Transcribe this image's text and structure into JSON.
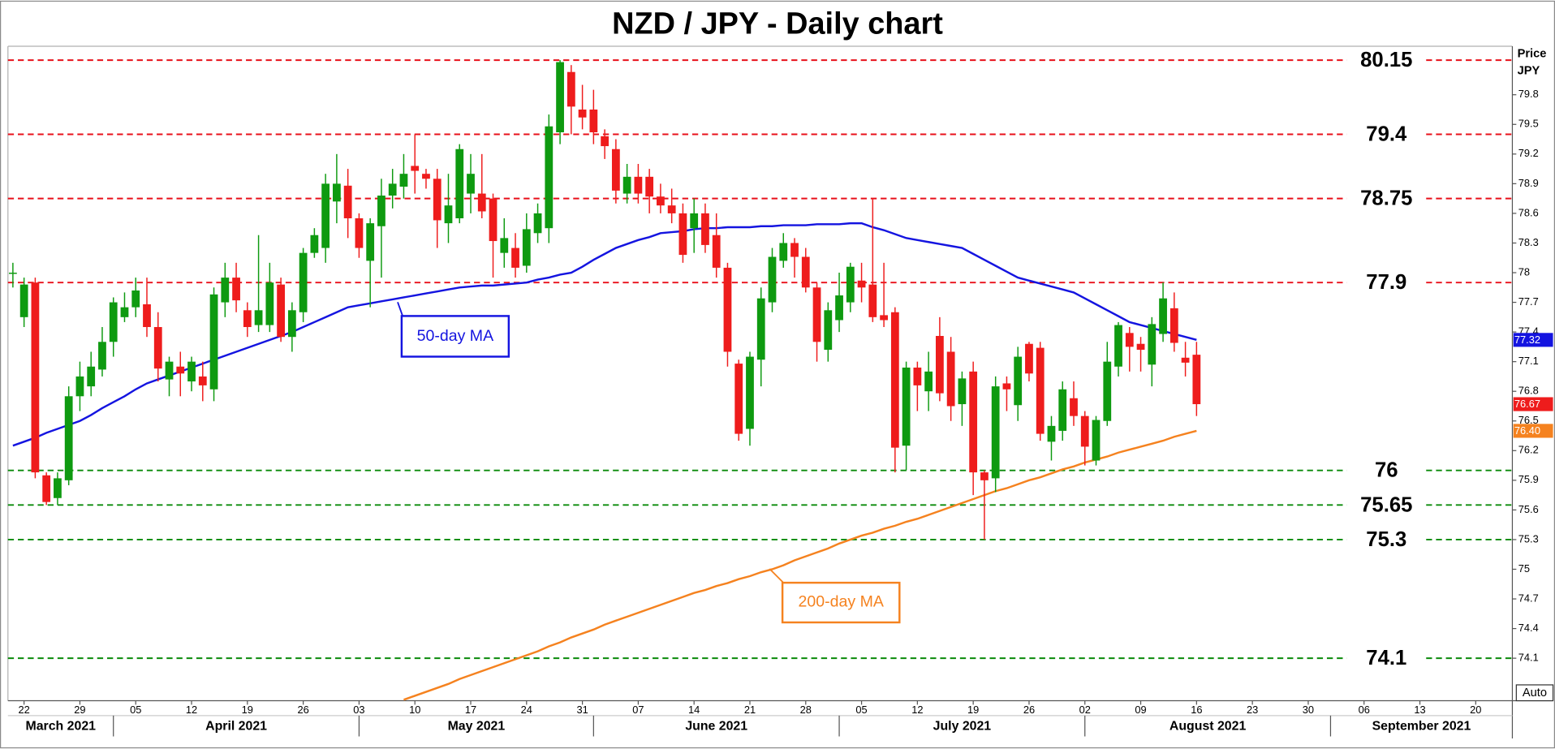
{
  "chart_data": {
    "type": "candlestick",
    "title": "NZD / JPY - Daily chart",
    "ylabel_lines": [
      "Price",
      "JPY"
    ],
    "controls": [
      "Auto"
    ],
    "ylim": [
      73.67,
      80.29
    ],
    "yticks": [
      74.1,
      74.4,
      74.7,
      75,
      75.3,
      75.6,
      75.9,
      76.2,
      76.5,
      76.8,
      77.1,
      77.4,
      77.7,
      78,
      78.3,
      78.6,
      78.9,
      79.2,
      79.5,
      79.8
    ],
    "categories": [
      "2021-03-19",
      "2021-03-22",
      "2021-03-23",
      "2021-03-24",
      "2021-03-25",
      "2021-03-26",
      "2021-03-29",
      "2021-03-30",
      "2021-03-31",
      "2021-04-01",
      "2021-04-02",
      "2021-04-05",
      "2021-04-06",
      "2021-04-07",
      "2021-04-08",
      "2021-04-09",
      "2021-04-12",
      "2021-04-13",
      "2021-04-14",
      "2021-04-15",
      "2021-04-16",
      "2021-04-19",
      "2021-04-20",
      "2021-04-21",
      "2021-04-22",
      "2021-04-23",
      "2021-04-26",
      "2021-04-27",
      "2021-04-28",
      "2021-04-29",
      "2021-04-30",
      "2021-05-03",
      "2021-05-04",
      "2021-05-05",
      "2021-05-06",
      "2021-05-07",
      "2021-05-10",
      "2021-05-11",
      "2021-05-12",
      "2021-05-13",
      "2021-05-14",
      "2021-05-17",
      "2021-05-18",
      "2021-05-19",
      "2021-05-20",
      "2021-05-21",
      "2021-05-24",
      "2021-05-25",
      "2021-05-26",
      "2021-05-27",
      "2021-05-28",
      "2021-05-31",
      "2021-06-01",
      "2021-06-02",
      "2021-06-03",
      "2021-06-04",
      "2021-06-07",
      "2021-06-08",
      "2021-06-09",
      "2021-06-10",
      "2021-06-11",
      "2021-06-14",
      "2021-06-15",
      "2021-06-16",
      "2021-06-17",
      "2021-06-18",
      "2021-06-21",
      "2021-06-22",
      "2021-06-23",
      "2021-06-24",
      "2021-06-25",
      "2021-06-28",
      "2021-06-29",
      "2021-06-30",
      "2021-07-01",
      "2021-07-02",
      "2021-07-05",
      "2021-07-06",
      "2021-07-07",
      "2021-07-08",
      "2021-07-09",
      "2021-07-12",
      "2021-07-13",
      "2021-07-14",
      "2021-07-15",
      "2021-07-16",
      "2021-07-19",
      "2021-07-20",
      "2021-07-21",
      "2021-07-22",
      "2021-07-23",
      "2021-07-26",
      "2021-07-27",
      "2021-07-28",
      "2021-07-29",
      "2021-07-30",
      "2021-08-02",
      "2021-08-03",
      "2021-08-04",
      "2021-08-05",
      "2021-08-06",
      "2021-08-09",
      "2021-08-10",
      "2021-08-11",
      "2021-08-12",
      "2021-08-13",
      "2021-08-16"
    ],
    "ohlc": {
      "up_color": "#0e9a10",
      "down_color": "#ee1c1c",
      "open": [
        78.0,
        77.55,
        77.9,
        75.95,
        75.72,
        75.9,
        76.75,
        76.85,
        77.02,
        77.3,
        77.55,
        77.65,
        77.68,
        77.45,
        76.92,
        77.05,
        76.9,
        76.95,
        76.82,
        77.7,
        77.95,
        77.62,
        77.47,
        77.47,
        77.88,
        77.35,
        77.6,
        78.2,
        78.25,
        78.72,
        78.88,
        78.55,
        78.12,
        78.47,
        78.78,
        78.87,
        79.08,
        79.0,
        78.95,
        78.5,
        78.55,
        78.8,
        78.8,
        78.75,
        78.2,
        78.25,
        78.07,
        78.4,
        78.45,
        79.42,
        80.03,
        79.65,
        79.65,
        79.38,
        79.25,
        78.8,
        78.97,
        78.97,
        78.77,
        78.68,
        78.6,
        78.45,
        78.6,
        78.38,
        78.05,
        77.08,
        76.42,
        77.12,
        77.7,
        78.12,
        78.3,
        78.16,
        77.85,
        77.22,
        77.52,
        77.7,
        77.92,
        77.88,
        77.57,
        77.6,
        76.25,
        77.04,
        76.8,
        77.36,
        77.2,
        76.67,
        77.0,
        75.98,
        75.92,
        76.88,
        76.66,
        77.28,
        77.24,
        76.29,
        76.4,
        76.73,
        76.55,
        76.1,
        76.5,
        77.05,
        77.39,
        77.28,
        77.07,
        77.38,
        77.64,
        77.14,
        77.17
      ],
      "high": [
        78.1,
        77.95,
        77.95,
        75.98,
        75.98,
        76.85,
        77.1,
        77.2,
        77.45,
        77.75,
        77.8,
        77.95,
        77.95,
        77.6,
        77.15,
        77.2,
        77.15,
        77.1,
        77.85,
        78.1,
        78.1,
        77.7,
        78.38,
        78.1,
        77.95,
        77.7,
        78.25,
        78.45,
        79.0,
        79.2,
        79.05,
        78.6,
        78.55,
        78.95,
        79.05,
        79.2,
        79.4,
        79.05,
        79.05,
        79.0,
        79.3,
        79.2,
        79.2,
        78.8,
        78.55,
        78.4,
        78.6,
        78.7,
        79.6,
        80.15,
        80.1,
        79.9,
        79.85,
        79.45,
        79.35,
        79.1,
        79.1,
        79.05,
        78.9,
        78.85,
        78.7,
        78.75,
        78.7,
        78.6,
        78.1,
        77.12,
        77.2,
        77.85,
        78.25,
        78.4,
        78.35,
        78.25,
        77.9,
        77.7,
        78.0,
        78.1,
        78.1,
        78.75,
        78.1,
        77.65,
        77.1,
        77.1,
        77.2,
        77.55,
        77.35,
        77.0,
        77.1,
        76.0,
        76.95,
        76.95,
        77.25,
        77.3,
        77.3,
        76.55,
        76.9,
        76.9,
        76.6,
        76.55,
        77.3,
        77.5,
        77.45,
        77.35,
        77.55,
        77.9,
        77.8,
        77.3,
        77.3
      ],
      "low": [
        77.85,
        77.45,
        75.92,
        75.65,
        75.65,
        75.85,
        76.6,
        76.75,
        76.95,
        77.15,
        77.5,
        77.55,
        77.35,
        76.9,
        76.75,
        76.75,
        76.8,
        76.7,
        76.7,
        77.55,
        77.6,
        77.35,
        77.4,
        77.4,
        77.3,
        77.2,
        77.5,
        78.15,
        78.1,
        78.5,
        78.35,
        78.15,
        77.65,
        77.95,
        78.65,
        78.75,
        78.8,
        78.85,
        78.25,
        78.3,
        78.5,
        78.6,
        78.55,
        77.95,
        78.05,
        77.95,
        78.0,
        78.3,
        78.3,
        79.3,
        79.4,
        79.45,
        79.3,
        79.15,
        78.7,
        78.7,
        78.7,
        78.6,
        78.6,
        78.5,
        78.1,
        78.2,
        78.2,
        77.95,
        77.05,
        76.3,
        76.25,
        76.85,
        77.6,
        78.05,
        77.95,
        77.8,
        77.1,
        77.1,
        77.4,
        77.6,
        77.7,
        77.5,
        77.45,
        75.98,
        76.0,
        76.6,
        76.6,
        76.7,
        76.5,
        76.45,
        75.75,
        75.3,
        75.78,
        76.6,
        76.5,
        76.9,
        76.3,
        76.1,
        76.3,
        76.45,
        76.05,
        76.05,
        76.45,
        76.95,
        77.0,
        77.0,
        76.85,
        77.3,
        77.2,
        76.95,
        76.55
      ],
      "close": [
        78.0,
        77.88,
        75.98,
        75.68,
        75.92,
        76.75,
        76.95,
        77.05,
        77.3,
        77.7,
        77.65,
        77.82,
        77.45,
        77.03,
        77.1,
        76.98,
        77.1,
        76.86,
        77.78,
        77.95,
        77.72,
        77.45,
        77.62,
        77.9,
        77.35,
        77.62,
        78.2,
        78.38,
        78.9,
        78.9,
        78.55,
        78.25,
        78.5,
        78.78,
        78.9,
        79.0,
        79.03,
        78.95,
        78.53,
        78.68,
        79.25,
        79.0,
        78.62,
        78.32,
        78.35,
        78.05,
        78.44,
        78.6,
        79.48,
        80.13,
        79.68,
        79.57,
        79.42,
        79.28,
        78.83,
        78.97,
        78.8,
        78.77,
        78.68,
        78.6,
        78.18,
        78.6,
        78.28,
        78.05,
        77.2,
        76.37,
        77.15,
        77.74,
        78.16,
        78.3,
        78.16,
        77.85,
        77.3,
        77.62,
        77.77,
        78.06,
        77.85,
        77.55,
        77.52,
        76.23,
        77.04,
        76.86,
        77.0,
        76.78,
        76.65,
        76.93,
        75.98,
        75.9,
        76.85,
        76.82,
        77.15,
        76.98,
        76.37,
        76.45,
        76.82,
        76.55,
        76.24,
        76.51,
        77.1,
        77.47,
        77.25,
        77.22,
        77.48,
        77.74,
        77.29,
        77.09,
        76.67
      ],
      "last_tag": {
        "value": 76.67,
        "label": "76.67"
      }
    },
    "overlays": [
      {
        "name": "50-day MA",
        "color": "#1414e0",
        "tag": {
          "value": 77.32,
          "label": "77.32"
        },
        "values": [
          76.25,
          76.29,
          76.33,
          76.38,
          76.42,
          76.46,
          76.5,
          76.56,
          76.63,
          76.69,
          76.75,
          76.82,
          76.88,
          76.92,
          76.96,
          77.0,
          77.04,
          77.08,
          77.12,
          77.16,
          77.2,
          77.24,
          77.28,
          77.32,
          77.36,
          77.4,
          77.45,
          77.5,
          77.55,
          77.6,
          77.65,
          77.67,
          77.69,
          77.71,
          77.73,
          77.75,
          77.77,
          77.79,
          77.81,
          77.83,
          77.85,
          77.86,
          77.87,
          77.87,
          77.88,
          77.89,
          77.9,
          77.93,
          77.95,
          77.98,
          78.0,
          78.06,
          78.13,
          78.19,
          78.25,
          78.29,
          78.33,
          78.36,
          78.4,
          78.41,
          78.42,
          78.44,
          78.45,
          78.45,
          78.46,
          78.46,
          78.46,
          78.47,
          78.47,
          78.48,
          78.48,
          78.48,
          78.49,
          78.49,
          78.49,
          78.5,
          78.5,
          78.46,
          78.43,
          78.39,
          78.35,
          78.33,
          78.31,
          78.29,
          78.27,
          78.25,
          78.19,
          78.13,
          78.07,
          78.01,
          77.95,
          77.92,
          77.89,
          77.86,
          77.83,
          77.8,
          77.74,
          77.68,
          77.62,
          77.56,
          77.5,
          77.47,
          77.44,
          77.41,
          77.38,
          77.35,
          77.32
        ]
      },
      {
        "name": "200-day MA",
        "color": "#f5821f",
        "tag": {
          "value": 76.4,
          "label": "76.40"
        },
        "values": [
          null,
          null,
          null,
          null,
          null,
          null,
          null,
          null,
          null,
          null,
          null,
          null,
          null,
          null,
          null,
          null,
          null,
          null,
          null,
          null,
          null,
          null,
          null,
          null,
          null,
          null,
          null,
          null,
          null,
          null,
          null,
          null,
          null,
          null,
          null,
          73.68,
          73.72,
          73.76,
          73.8,
          73.84,
          73.89,
          73.93,
          73.97,
          74.01,
          74.05,
          74.09,
          74.13,
          74.17,
          74.22,
          74.26,
          74.31,
          74.35,
          74.39,
          74.44,
          74.48,
          74.52,
          74.56,
          74.6,
          74.64,
          74.68,
          74.72,
          74.76,
          74.79,
          74.83,
          74.86,
          74.9,
          74.93,
          74.97,
          75.0,
          75.04,
          75.09,
          75.13,
          75.17,
          75.21,
          75.26,
          75.3,
          75.34,
          75.37,
          75.41,
          75.44,
          75.48,
          75.51,
          75.55,
          75.59,
          75.63,
          75.67,
          75.71,
          75.75,
          75.79,
          75.82,
          75.86,
          75.9,
          75.93,
          75.97,
          76.01,
          76.04,
          76.08,
          76.11,
          76.14,
          76.18,
          76.21,
          76.24,
          76.27,
          76.3,
          76.34,
          76.37,
          76.4
        ]
      }
    ],
    "levels": [
      {
        "value": 80.15,
        "color": "#e8101a"
      },
      {
        "value": 79.4,
        "color": "#e8101a"
      },
      {
        "value": 78.75,
        "color": "#e8101a"
      },
      {
        "value": 77.9,
        "color": "#e8101a"
      },
      {
        "value": 76,
        "color": "#0a8a0a"
      },
      {
        "value": 75.65,
        "color": "#0a8a0a"
      },
      {
        "value": 75.3,
        "color": "#0a8a0a"
      },
      {
        "value": 74.1,
        "color": "#0a8a0a"
      }
    ],
    "xticks": [
      {
        "value": "2021-03-22",
        "label": "22"
      },
      {
        "value": "2021-03-29",
        "label": "29"
      },
      {
        "value": "2021-04-05",
        "label": "05"
      },
      {
        "value": "2021-04-12",
        "label": "12"
      },
      {
        "value": "2021-04-19",
        "label": "19"
      },
      {
        "value": "2021-04-26",
        "label": "26"
      },
      {
        "value": "2021-05-03",
        "label": "03"
      },
      {
        "value": "2021-05-10",
        "label": "10"
      },
      {
        "value": "2021-05-17",
        "label": "17"
      },
      {
        "value": "2021-05-24",
        "label": "24"
      },
      {
        "value": "2021-05-31",
        "label": "31"
      },
      {
        "value": "2021-06-07",
        "label": "07"
      },
      {
        "value": "2021-06-14",
        "label": "14"
      },
      {
        "value": "2021-06-21",
        "label": "21"
      },
      {
        "value": "2021-06-28",
        "label": "28"
      },
      {
        "value": "2021-07-05",
        "label": "05"
      },
      {
        "value": "2021-07-12",
        "label": "12"
      },
      {
        "value": "2021-07-19",
        "label": "19"
      },
      {
        "value": "2021-07-26",
        "label": "26"
      },
      {
        "value": "2021-08-02",
        "label": "02"
      },
      {
        "value": "2021-08-09",
        "label": "09"
      },
      {
        "value": "2021-08-16",
        "label": "16"
      },
      {
        "value": "2021-08-23",
        "label": "23"
      },
      {
        "value": "2021-08-30",
        "label": "30"
      },
      {
        "value": "2021-09-06",
        "label": "06"
      },
      {
        "value": "2021-09-13",
        "label": "13"
      },
      {
        "value": "2021-09-20",
        "label": "20"
      }
    ],
    "months": [
      {
        "start": "2021-03",
        "label": "March 2021"
      },
      {
        "start": "2021-04",
        "label": "April 2021"
      },
      {
        "start": "2021-05",
        "label": "May 2021"
      },
      {
        "start": "2021-06",
        "label": "June 2021"
      },
      {
        "start": "2021-07",
        "label": "July 2021"
      },
      {
        "start": "2021-08",
        "label": "August 2021"
      },
      {
        "start": "2021-09",
        "label": "September 2021"
      }
    ]
  }
}
